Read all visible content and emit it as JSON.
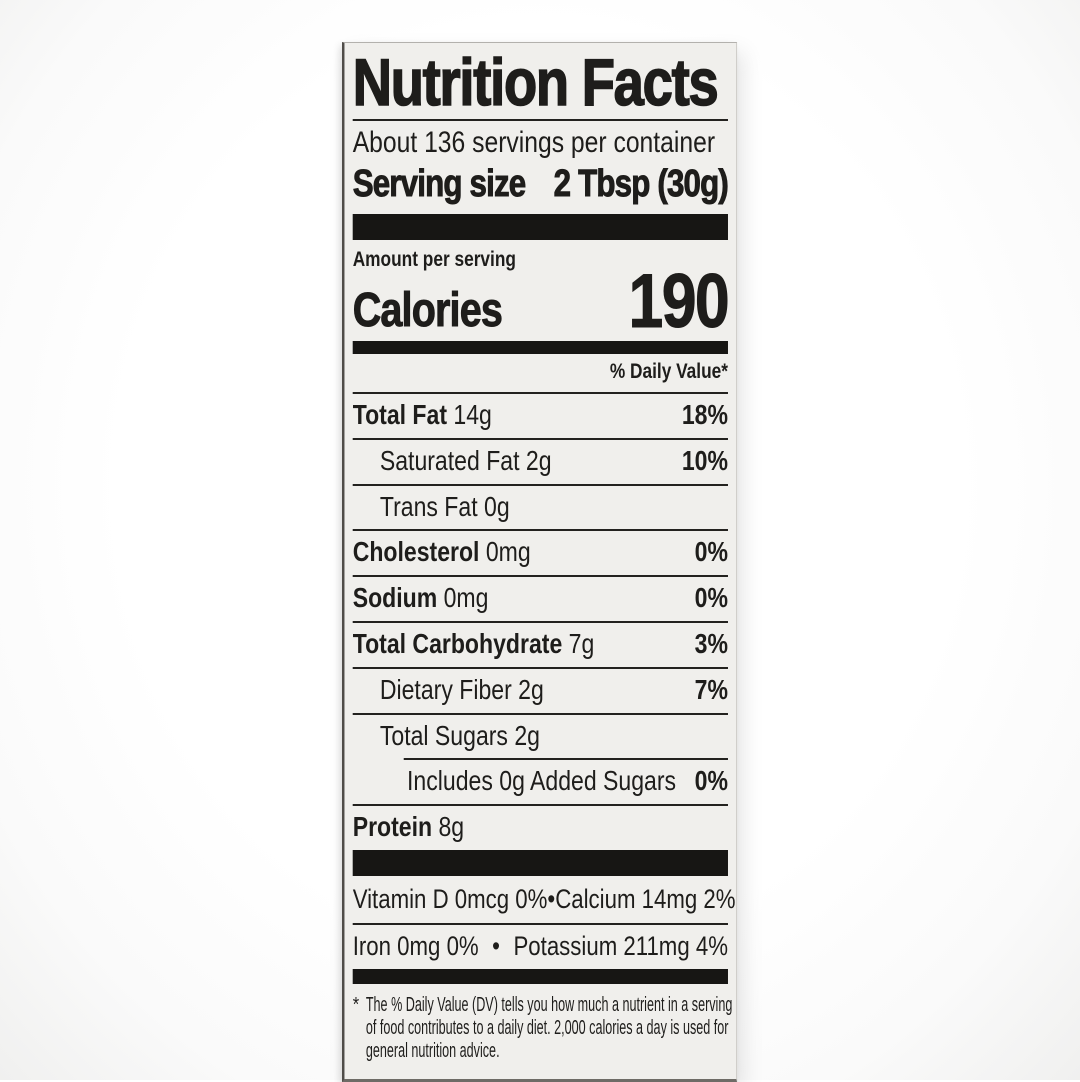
{
  "colors": {
    "label_background": "#f0efec",
    "ink": "#1e1d1b",
    "bar": "#171614",
    "page_background": "#ffffff"
  },
  "label": {
    "title": "Nutrition Facts",
    "servings_per_container": "About 136 servings per container",
    "serving_size": {
      "label": "Serving size",
      "value": "2 Tbsp (30g)"
    },
    "amount_per_serving": "Amount per serving",
    "calories": {
      "label": "Calories",
      "value": "190"
    },
    "daily_value_header": "% Daily Value*",
    "nutrients": [
      {
        "name": "Total Fat",
        "amount": "14g",
        "dv": "18%",
        "bold": true,
        "indent": 0,
        "rule_indent": false
      },
      {
        "name": "Saturated Fat",
        "amount": "2g",
        "dv": "10%",
        "bold": false,
        "indent": 1,
        "rule_indent": false
      },
      {
        "name": "Trans Fat",
        "amount": "0g",
        "dv": "",
        "bold": false,
        "indent": 1,
        "rule_indent": false
      },
      {
        "name": "Cholesterol",
        "amount": "0mg",
        "dv": "0%",
        "bold": true,
        "indent": 0,
        "rule_indent": false
      },
      {
        "name": "Sodium",
        "amount": "0mg",
        "dv": "0%",
        "bold": true,
        "indent": 0,
        "rule_indent": false
      },
      {
        "name": "Total Carbohydrate",
        "amount": "7g",
        "dv": "3%",
        "bold": true,
        "indent": 0,
        "rule_indent": false
      },
      {
        "name": "Dietary Fiber",
        "amount": "2g",
        "dv": "7%",
        "bold": false,
        "indent": 1,
        "rule_indent": false
      },
      {
        "name": "Total Sugars",
        "amount": "2g",
        "dv": "",
        "bold": false,
        "indent": 1,
        "rule_indent": false
      },
      {
        "name": "Includes 0g Added Sugars",
        "amount": "",
        "dv": "0%",
        "bold": false,
        "indent": 2,
        "rule_indent": true
      },
      {
        "name": "Protein",
        "amount": "8g",
        "dv": "",
        "bold": true,
        "indent": 0,
        "rule_indent": false
      }
    ],
    "micronutrients": [
      {
        "left": "Vitamin D 0mcg 0%",
        "bullet": "•",
        "right": "Calcium 14mg 2%"
      },
      {
        "left": "Iron 0mg 0%",
        "bullet": "•",
        "right": "Potassium 211mg 4%"
      }
    ],
    "footnote": {
      "marker": "*",
      "text": "The % Daily Value (DV) tells you how much a nutrient in a serving of food contributes to a daily diet. 2,000 calories a day is used for general nutrition advice."
    }
  }
}
